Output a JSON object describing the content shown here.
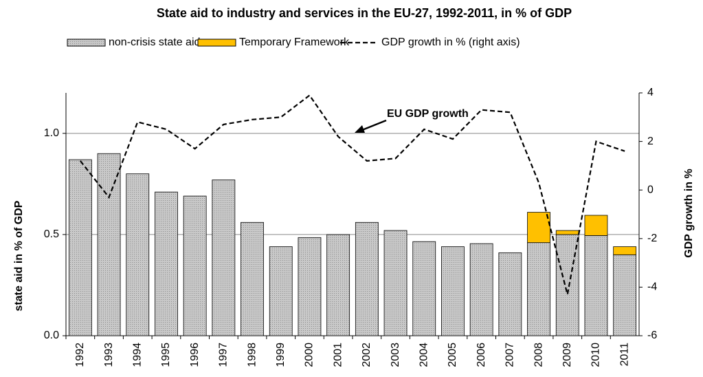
{
  "chart_data": {
    "type": "bar",
    "title": "State aid to industry and services in the EU-27, 1992-2011, in % of GDP",
    "ylabel": "state aid in % of GDP",
    "y2label": "GDP growth in %",
    "annotation": "EU GDP growth",
    "categories": [
      "1992",
      "1993",
      "1994",
      "1995",
      "1996",
      "1997",
      "1998",
      "1999",
      "2000",
      "2001",
      "2002",
      "2003",
      "2004",
      "2005",
      "2006",
      "2007",
      "2008",
      "2009",
      "2010",
      "2011"
    ],
    "series": [
      {
        "name": "non-crisis state aid",
        "color": "#c0c0c0",
        "values": [
          0.87,
          0.9,
          0.8,
          0.71,
          0.69,
          0.77,
          0.56,
          0.44,
          0.485,
          0.5,
          0.56,
          0.52,
          0.465,
          0.44,
          0.455,
          0.41,
          0.46,
          0.5,
          0.495,
          0.4
        ]
      },
      {
        "name": "Temporary Framework",
        "color": "#ffc000",
        "values": [
          null,
          null,
          null,
          null,
          null,
          null,
          null,
          null,
          null,
          null,
          null,
          null,
          null,
          null,
          null,
          null,
          0.15,
          0.02,
          0.1,
          0.04
        ]
      },
      {
        "name": "GDP growth in % (right axis)",
        "color": "#000000",
        "axis": "y2",
        "line": true,
        "values": [
          1.2,
          -0.3,
          2.8,
          2.5,
          1.7,
          2.7,
          2.9,
          3.0,
          3.9,
          2.2,
          1.2,
          1.3,
          2.5,
          2.1,
          3.3,
          3.2,
          0.3,
          -4.3,
          2.0,
          1.6
        ]
      }
    ],
    "ylim": [
      0,
      1.2
    ],
    "yticks": [
      {
        "value": 0,
        "label": "0.0"
      },
      {
        "value": 0.5,
        "label": "0.5"
      },
      {
        "value": 1,
        "label": "1.0"
      }
    ],
    "y2lim": [
      -6,
      4
    ],
    "y2ticks": [
      -6,
      -4,
      -2,
      0,
      2,
      4
    ],
    "grid": true
  }
}
